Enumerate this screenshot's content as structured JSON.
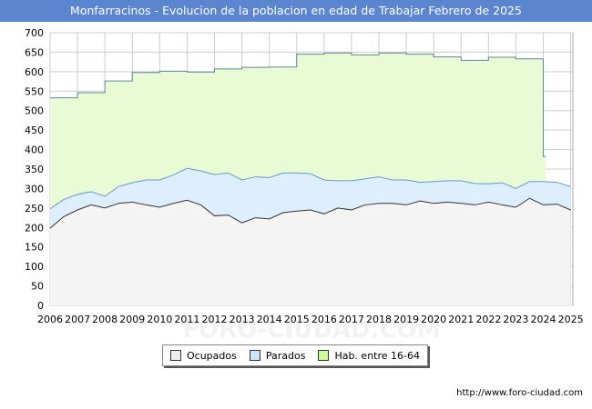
{
  "colors": {
    "header_bg": "#5b86cf",
    "grid": "#cccccc"
  },
  "chart_data": {
    "type": "area",
    "title": "Monfarracinos - Evolucion de la poblacion en edad de Trabajar Febrero de 2025",
    "source": "http://www.foro-ciudad.com",
    "watermark": "FORO-CIUDAD.COM",
    "ylim": [
      0,
      700
    ],
    "yticks": [
      0,
      50,
      100,
      150,
      200,
      250,
      300,
      350,
      400,
      450,
      500,
      550,
      600,
      650,
      700
    ],
    "xlim": [
      2006,
      2025.08
    ],
    "xticks": [
      2006,
      2007,
      2008,
      2009,
      2010,
      2011,
      2012,
      2013,
      2014,
      2015,
      2016,
      2017,
      2018,
      2019,
      2020,
      2021,
      2022,
      2023,
      2024,
      2025
    ],
    "legend": [
      "Ocupados",
      "Parados",
      "Hab. entre 16-64"
    ],
    "series": [
      {
        "name": "Hab. entre 16-64",
        "color": "#ccff99",
        "fill": "#e8fbd4",
        "stroke": "#5a8a9a",
        "x": [
          2006,
          2007,
          2008,
          2009,
          2010,
          2011,
          2012,
          2013,
          2014,
          2015,
          2016,
          2017,
          2018,
          2019,
          2020,
          2021,
          2022,
          2023,
          2024,
          2024.08
        ],
        "values": [
          533,
          546,
          576,
          598,
          601,
          599,
          607,
          611,
          612,
          645,
          648,
          643,
          648,
          645,
          638,
          629,
          637,
          633,
          382,
          382
        ]
      },
      {
        "name": "Parados",
        "color": "#cce5ff",
        "fill": "#ddeeff",
        "stroke": "#6699cc",
        "x": [
          2006,
          2006.5,
          2007,
          2007.5,
          2008,
          2008.5,
          2009,
          2009.5,
          2010,
          2010.5,
          2011,
          2011.5,
          2012,
          2012.5,
          2013,
          2013.5,
          2014,
          2014.5,
          2015,
          2015.5,
          2016,
          2016.5,
          2017,
          2017.5,
          2018,
          2018.5,
          2019,
          2019.5,
          2020,
          2020.5,
          2021,
          2021.5,
          2022,
          2022.5,
          2023,
          2023.5,
          2024,
          2024.5,
          2025
        ],
        "values": [
          248,
          272,
          285,
          292,
          280,
          305,
          315,
          322,
          322,
          335,
          352,
          345,
          336,
          340,
          322,
          330,
          328,
          340,
          340,
          338,
          322,
          320,
          320,
          325,
          330,
          322,
          322,
          316,
          318,
          320,
          320,
          313,
          312,
          315,
          300,
          318,
          318,
          316,
          305
        ]
      },
      {
        "name": "Ocupados",
        "color": "#eeeeee",
        "fill": "#f4f4f4",
        "stroke": "#333333",
        "x": [
          2006,
          2006.5,
          2007,
          2007.5,
          2008,
          2008.5,
          2009,
          2009.5,
          2010,
          2010.5,
          2011,
          2011.5,
          2012,
          2012.5,
          2013,
          2013.5,
          2014,
          2014.5,
          2015,
          2015.5,
          2016,
          2016.5,
          2017,
          2017.5,
          2018,
          2018.5,
          2019,
          2019.5,
          2020,
          2020.5,
          2021,
          2021.5,
          2022,
          2022.5,
          2023,
          2023.5,
          2024,
          2024.5,
          2025
        ],
        "values": [
          198,
          228,
          245,
          258,
          250,
          262,
          265,
          258,
          252,
          262,
          270,
          258,
          230,
          232,
          212,
          225,
          222,
          238,
          242,
          245,
          235,
          250,
          245,
          258,
          262,
          262,
          258,
          268,
          262,
          265,
          262,
          258,
          265,
          258,
          252,
          275,
          258,
          260,
          245
        ]
      }
    ]
  }
}
